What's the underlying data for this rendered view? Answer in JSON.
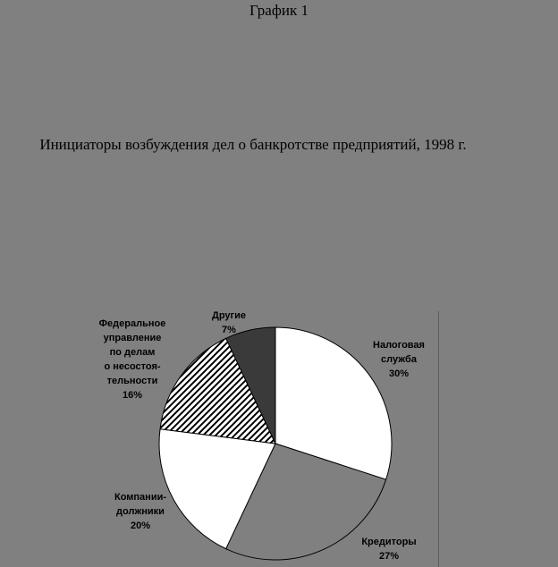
{
  "page": {
    "background_color": "#808080"
  },
  "document": {
    "title": "График 1",
    "subtitle": "Инициаторы возбуждения дел о банкротстве предприятий, 1998 г."
  },
  "chart_data": {
    "type": "pie",
    "title": "График 1",
    "subtitle": "Инициаторы возбуждения дел о банкротстве предприятий, 1998 г.",
    "start_angle_deg": 0,
    "direction": "clockwise",
    "stroke_color": "#000000",
    "gridline_color": "#5e5e5e",
    "slices": [
      {
        "label": "Налоговая служба",
        "value": 30,
        "fill": "#ffffff",
        "pattern": "solid"
      },
      {
        "label": "Кредиторы",
        "value": 27,
        "fill": "#808080",
        "pattern": "solid"
      },
      {
        "label": "Компании-должники",
        "value": 20,
        "fill": "#ffffff",
        "pattern": "solid"
      },
      {
        "label": "Федеральное управление по делам о несостоятельности",
        "value": 16,
        "fill": "#ffffff",
        "pattern": "diagonal-hatch"
      },
      {
        "label": "Другие",
        "value": 7,
        "fill": "#3a3a3a",
        "pattern": "solid"
      }
    ],
    "labels": {
      "drugie": "Другие\n7%",
      "nalogovaya": "Налоговая\nслужба\n30%",
      "kreditory": "Кредиторы\n27%",
      "kompanii": "Компании-\nдолжники\n20%",
      "federalnoe": "Федеральное\nуправление\nпо делам\nо несостоя-\nтельности\n16%"
    }
  }
}
